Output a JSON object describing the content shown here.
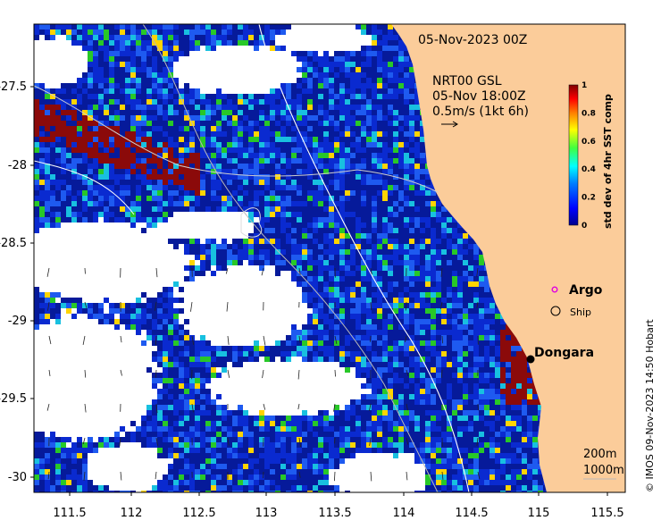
{
  "map": {
    "date_label": "05-Nov-2023 00Z",
    "current_info": {
      "line1": "NRT00 GSL",
      "line2": "05-Nov 18:00Z",
      "line3": "0.5m/s (1kt 6h)"
    },
    "lon_ticks": [
      "111.5",
      "112",
      "112.5",
      "113",
      "113.5",
      "114",
      "114.5",
      "115",
      "115.5"
    ],
    "lat_ticks": [
      "-27.5",
      "-28",
      "-28.5",
      "-29",
      "-29.5",
      "-30"
    ],
    "colorbar": {
      "label": "std dev of 4hr SST comp",
      "tick_labels": [
        "1",
        "0.8",
        "0.6",
        "0.4",
        "0.2",
        "0"
      ],
      "min": 0,
      "max": 1
    },
    "legend": {
      "argo": "Argo",
      "ship": "Ship"
    },
    "place": {
      "name": "Dongara"
    },
    "isobaths": {
      "shallow": "200m",
      "deep": "1000m"
    },
    "credit": "© IMOS 09-Nov-2023 14:50 Hobart",
    "colors": {
      "land": "#fbcc9a",
      "ocean_low": "#0a1ea8",
      "ocean_mid": "#1e5af0",
      "high": "#8b0a0a",
      "argo_marker": "#e000e0",
      "dongara_dot": "#000000"
    }
  }
}
